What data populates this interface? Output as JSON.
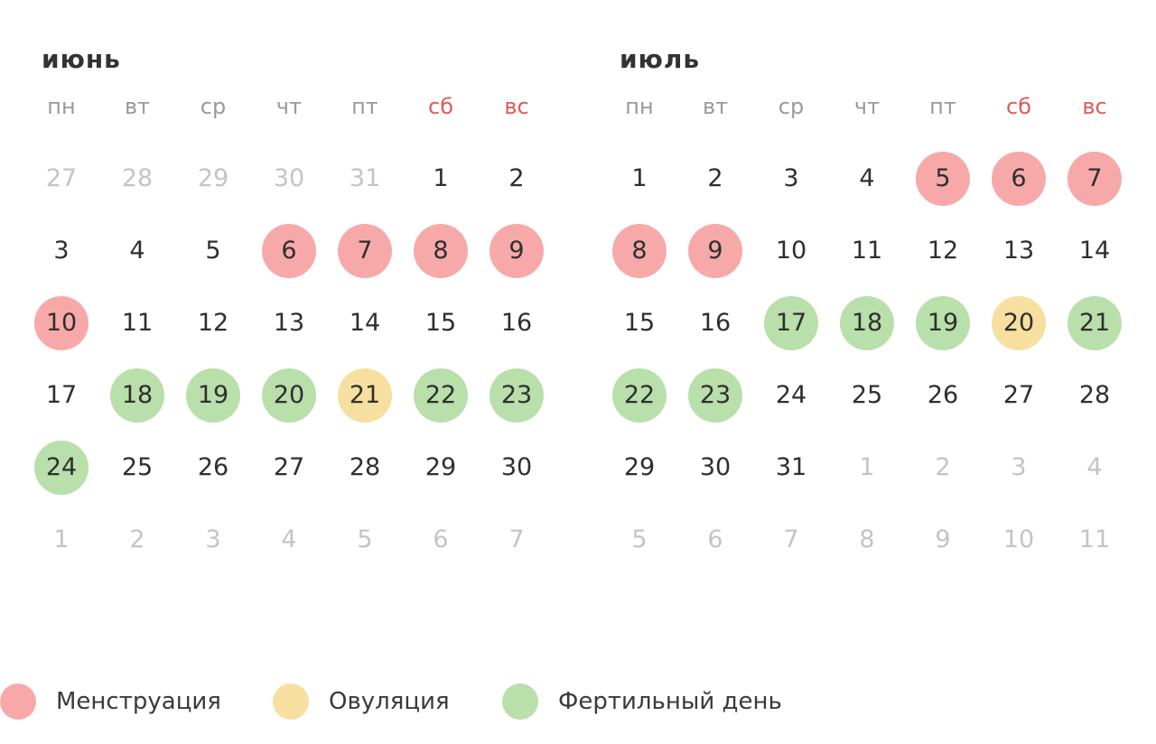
{
  "calendars": [
    {
      "title": "июнь",
      "weekdays": [
        {
          "label": "пн",
          "weekend": false
        },
        {
          "label": "вт",
          "weekend": false
        },
        {
          "label": "ср",
          "weekend": false
        },
        {
          "label": "чт",
          "weekend": false
        },
        {
          "label": "пт",
          "weekend": false
        },
        {
          "label": "сб",
          "weekend": true
        },
        {
          "label": "вс",
          "weekend": true
        }
      ],
      "days": [
        {
          "n": "27",
          "muted": true
        },
        {
          "n": "28",
          "muted": true
        },
        {
          "n": "29",
          "muted": true
        },
        {
          "n": "30",
          "muted": true
        },
        {
          "n": "31",
          "muted": true
        },
        {
          "n": "1"
        },
        {
          "n": "2"
        },
        {
          "n": "3"
        },
        {
          "n": "4"
        },
        {
          "n": "5"
        },
        {
          "n": "6",
          "mark": "menstruation"
        },
        {
          "n": "7",
          "mark": "menstruation"
        },
        {
          "n": "8",
          "mark": "menstruation"
        },
        {
          "n": "9",
          "mark": "menstruation"
        },
        {
          "n": "10",
          "mark": "menstruation"
        },
        {
          "n": "11"
        },
        {
          "n": "12"
        },
        {
          "n": "13"
        },
        {
          "n": "14"
        },
        {
          "n": "15"
        },
        {
          "n": "16"
        },
        {
          "n": "17"
        },
        {
          "n": "18",
          "mark": "fertile"
        },
        {
          "n": "19",
          "mark": "fertile"
        },
        {
          "n": "20",
          "mark": "fertile"
        },
        {
          "n": "21",
          "mark": "ovulation"
        },
        {
          "n": "22",
          "mark": "fertile"
        },
        {
          "n": "23",
          "mark": "fertile"
        },
        {
          "n": "24",
          "mark": "fertile"
        },
        {
          "n": "25"
        },
        {
          "n": "26"
        },
        {
          "n": "27"
        },
        {
          "n": "28"
        },
        {
          "n": "29"
        },
        {
          "n": "30"
        },
        {
          "n": "1",
          "muted": true
        },
        {
          "n": "2",
          "muted": true
        },
        {
          "n": "3",
          "muted": true
        },
        {
          "n": "4",
          "muted": true
        },
        {
          "n": "5",
          "muted": true
        },
        {
          "n": "6",
          "muted": true
        },
        {
          "n": "7",
          "muted": true
        }
      ]
    },
    {
      "title": "июль",
      "weekdays": [
        {
          "label": "пн",
          "weekend": false
        },
        {
          "label": "вт",
          "weekend": false
        },
        {
          "label": "ср",
          "weekend": false
        },
        {
          "label": "чт",
          "weekend": false
        },
        {
          "label": "пт",
          "weekend": false
        },
        {
          "label": "сб",
          "weekend": true
        },
        {
          "label": "вс",
          "weekend": true
        }
      ],
      "days": [
        {
          "n": "1"
        },
        {
          "n": "2"
        },
        {
          "n": "3"
        },
        {
          "n": "4"
        },
        {
          "n": "5",
          "mark": "menstruation"
        },
        {
          "n": "6",
          "mark": "menstruation"
        },
        {
          "n": "7",
          "mark": "menstruation"
        },
        {
          "n": "8",
          "mark": "menstruation"
        },
        {
          "n": "9",
          "mark": "menstruation"
        },
        {
          "n": "10"
        },
        {
          "n": "11"
        },
        {
          "n": "12"
        },
        {
          "n": "13"
        },
        {
          "n": "14"
        },
        {
          "n": "15"
        },
        {
          "n": "16"
        },
        {
          "n": "17",
          "mark": "fertile"
        },
        {
          "n": "18",
          "mark": "fertile"
        },
        {
          "n": "19",
          "mark": "fertile"
        },
        {
          "n": "20",
          "mark": "ovulation"
        },
        {
          "n": "21",
          "mark": "fertile"
        },
        {
          "n": "22",
          "mark": "fertile"
        },
        {
          "n": "23",
          "mark": "fertile"
        },
        {
          "n": "24"
        },
        {
          "n": "25"
        },
        {
          "n": "26"
        },
        {
          "n": "27"
        },
        {
          "n": "28"
        },
        {
          "n": "29"
        },
        {
          "n": "30"
        },
        {
          "n": "31"
        },
        {
          "n": "1",
          "muted": true
        },
        {
          "n": "2",
          "muted": true
        },
        {
          "n": "3",
          "muted": true
        },
        {
          "n": "4",
          "muted": true
        },
        {
          "n": "5",
          "muted": true
        },
        {
          "n": "6",
          "muted": true
        },
        {
          "n": "7",
          "muted": true
        },
        {
          "n": "8",
          "muted": true
        },
        {
          "n": "9",
          "muted": true
        },
        {
          "n": "10",
          "muted": true
        },
        {
          "n": "11",
          "muted": true
        }
      ]
    }
  ],
  "legend": [
    {
      "key": "menstruation",
      "label": "Менструация",
      "color": "#f7a9a9"
    },
    {
      "key": "ovulation",
      "label": "Овуляция",
      "color": "#f7df9f"
    },
    {
      "key": "fertile",
      "label": "Фертильный день",
      "color": "#b9dfaa"
    }
  ],
  "colors": {
    "menstruation": "#f7a9a9",
    "ovulation": "#f7df9f",
    "fertile": "#b9dfaa",
    "weekend_text": "#e05a5a",
    "weekday_text": "#9a9a9a",
    "day_text": "#2f2f2f",
    "muted_text": "#c4c4c4"
  }
}
